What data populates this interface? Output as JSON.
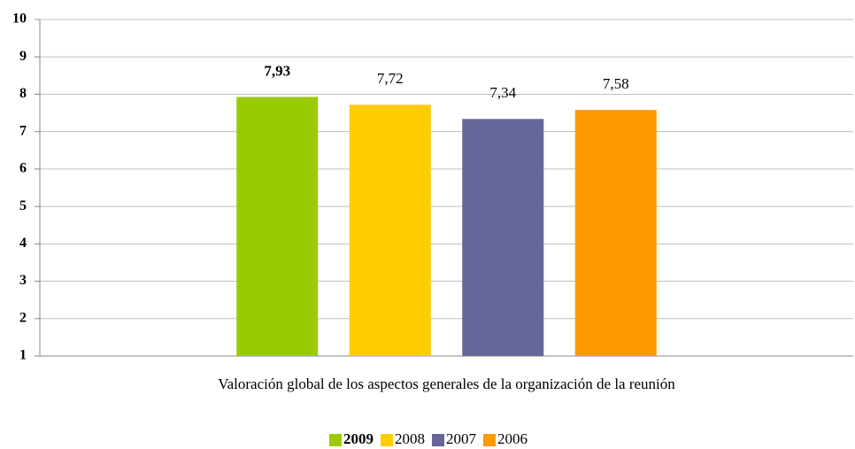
{
  "chart_data": {
    "type": "bar",
    "categories": [
      "Valoración global de los aspectos generales de la organización de la reunión"
    ],
    "series": [
      {
        "name": "2009",
        "color": "#99cc00",
        "values": [
          7.93
        ],
        "value_labels": [
          "7,93"
        ]
      },
      {
        "name": "2008",
        "color": "#ffcc00",
        "values": [
          7.72
        ],
        "value_labels": [
          "7,72"
        ]
      },
      {
        "name": "2007",
        "color": "#666699",
        "values": [
          7.34
        ],
        "value_labels": [
          "7,34"
        ]
      },
      {
        "name": "2006",
        "color": "#ff9900",
        "values": [
          7.58
        ],
        "value_labels": [
          "7,58"
        ]
      }
    ],
    "ylim": [
      1,
      10
    ],
    "yticks": [
      1,
      2,
      3,
      4,
      5,
      6,
      7,
      8,
      9,
      10
    ],
    "grid": true,
    "legend": "bottom"
  }
}
